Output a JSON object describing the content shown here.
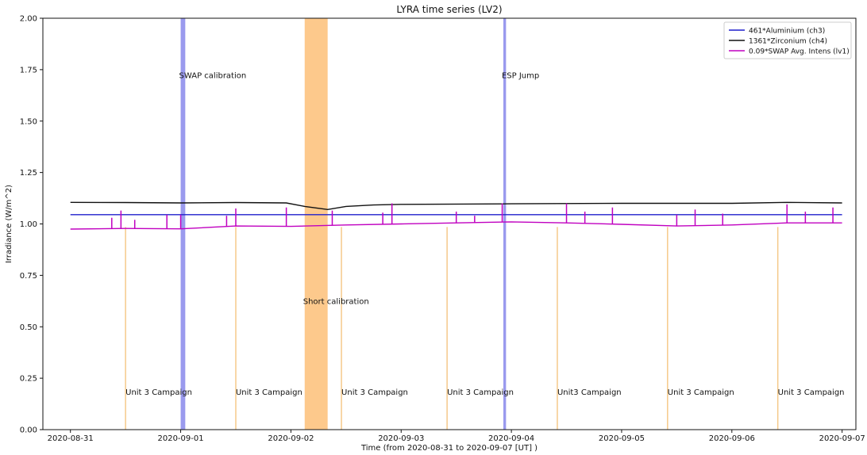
{
  "chart_data": {
    "type": "line",
    "title": "LYRA time series (LV2)",
    "xlabel": "Time (from 2020-08-31 to 2020-09-07 [UT] )",
    "ylabel": "Irradiance (W/m^2)",
    "xlim": [
      "2020-08-30 18:00",
      "2020-09-07 03:00"
    ],
    "ylim": [
      0.0,
      2.0
    ],
    "x_ticks": [
      "2020-08-31",
      "2020-09-01",
      "2020-09-02",
      "2020-09-03",
      "2020-09-04",
      "2020-09-05",
      "2020-09-06",
      "2020-09-07"
    ],
    "y_ticks": [
      "0.00",
      "0.25",
      "0.50",
      "0.75",
      "1.00",
      "1.25",
      "1.50",
      "1.75",
      "2.00"
    ],
    "grid": false,
    "legend_position": "top-right",
    "colors": {
      "aluminium": "#1f1fcc",
      "zirconium": "#111111",
      "swap": "#c000c0",
      "calibration_band": "#9a9aee",
      "short_calibration_band": "#fdc98c",
      "campaign_line": "#f5c98a"
    },
    "series": [
      {
        "name": "461*Aluminium (ch3)",
        "color": "#1f1fcc",
        "points": [
          [
            "2020-08-31 00:00",
            1.045
          ],
          [
            "2020-09-01 00:00",
            1.045
          ],
          [
            "2020-09-02 00:00",
            1.045
          ],
          [
            "2020-09-03 00:00",
            1.045
          ],
          [
            "2020-09-04 00:00",
            1.045
          ],
          [
            "2020-09-05 00:00",
            1.045
          ],
          [
            "2020-09-06 00:00",
            1.045
          ],
          [
            "2020-09-07 00:00",
            1.045
          ]
        ]
      },
      {
        "name": "1361*Zirconium (ch4)",
        "color": "#111111",
        "points": [
          [
            "2020-08-31 00:00",
            1.105
          ],
          [
            "2020-08-31 12:00",
            1.104
          ],
          [
            "2020-09-01 00:00",
            1.102
          ],
          [
            "2020-09-01 12:00",
            1.104
          ],
          [
            "2020-09-01 23:00",
            1.102
          ],
          [
            "2020-09-02 03:00",
            1.085
          ],
          [
            "2020-09-02 08:00",
            1.07
          ],
          [
            "2020-09-02 12:00",
            1.085
          ],
          [
            "2020-09-02 18:00",
            1.092
          ],
          [
            "2020-09-03 00:00",
            1.095
          ],
          [
            "2020-09-04 00:00",
            1.098
          ],
          [
            "2020-09-05 00:00",
            1.1
          ],
          [
            "2020-09-06 00:00",
            1.1
          ],
          [
            "2020-09-06 12:00",
            1.105
          ],
          [
            "2020-09-07 00:00",
            1.102
          ]
        ]
      },
      {
        "name": "0.09*SWAP Avg. Intens (lv1)",
        "color": "#c000c0",
        "points": [
          [
            "2020-08-31 00:00",
            0.975
          ],
          [
            "2020-08-31 12:00",
            0.978
          ],
          [
            "2020-09-01 00:00",
            0.976
          ],
          [
            "2020-09-01 12:00",
            0.99
          ],
          [
            "2020-09-02 00:00",
            0.988
          ],
          [
            "2020-09-02 12:00",
            0.995
          ],
          [
            "2020-09-03 00:00",
            1.0
          ],
          [
            "2020-09-03 12:00",
            1.005
          ],
          [
            "2020-09-04 00:00",
            1.01
          ],
          [
            "2020-09-04 12:00",
            1.005
          ],
          [
            "2020-09-05 00:00",
            0.998
          ],
          [
            "2020-09-05 12:00",
            0.99
          ],
          [
            "2020-09-06 00:00",
            0.995
          ],
          [
            "2020-09-06 12:00",
            1.005
          ],
          [
            "2020-09-07 00:00",
            1.005
          ]
        ],
        "spikes": [
          [
            "2020-08-31 09:00",
            1.03
          ],
          [
            "2020-08-31 11:00",
            1.065
          ],
          [
            "2020-08-31 14:00",
            1.02
          ],
          [
            "2020-08-31 21:00",
            1.045
          ],
          [
            "2020-09-01 00:00",
            1.045
          ],
          [
            "2020-09-01 10:00",
            1.04
          ],
          [
            "2020-09-01 12:00",
            1.075
          ],
          [
            "2020-09-01 23:00",
            1.08
          ],
          [
            "2020-09-02 09:00",
            1.065
          ],
          [
            "2020-09-02 20:00",
            1.055
          ],
          [
            "2020-09-02 22:00",
            1.1
          ],
          [
            "2020-09-03 12:00",
            1.06
          ],
          [
            "2020-09-03 16:00",
            1.04
          ],
          [
            "2020-09-03 22:00",
            1.1
          ],
          [
            "2020-09-04 12:00",
            1.1
          ],
          [
            "2020-09-04 16:00",
            1.06
          ],
          [
            "2020-09-04 22:00",
            1.08
          ],
          [
            "2020-09-05 12:00",
            1.045
          ],
          [
            "2020-09-05 16:00",
            1.07
          ],
          [
            "2020-09-05 22:00",
            1.05
          ],
          [
            "2020-09-06 12:00",
            1.095
          ],
          [
            "2020-09-06 16:00",
            1.06
          ],
          [
            "2020-09-06 22:00",
            1.08
          ]
        ]
      }
    ],
    "bands": [
      {
        "label": "SWAP calibration",
        "start": "2020-09-01 00:00",
        "end": "2020-09-01 01:00",
        "color": "#9a9aee",
        "label_y": 1.71
      },
      {
        "label": "Short calibration",
        "start": "2020-09-02 03:00",
        "end": "2020-09-02 08:00",
        "color": "#fdc98c",
        "label_y": 0.61
      },
      {
        "label": "ESP Jump",
        "start": "2020-09-03 22:15",
        "end": "2020-09-03 22:50",
        "color": "#9a9aee",
        "label_y": 1.71
      }
    ],
    "campaign_lines": [
      {
        "label": "Unit 3 Campaign",
        "x": "2020-08-31 12:00",
        "y_top": 0.985
      },
      {
        "label": "Unit 3 Campaign",
        "x": "2020-09-01 12:00",
        "y_top": 0.985
      },
      {
        "label": "Unit 3 Campaign",
        "x": "2020-09-02 11:00",
        "y_top": 0.985
      },
      {
        "label": "Unit 3 Campaign",
        "x": "2020-09-03 10:00",
        "y_top": 0.985
      },
      {
        "label": "Unit3 Campaign",
        "x": "2020-09-04 10:00",
        "y_top": 0.985
      },
      {
        "label": "Unit 3 Campaign",
        "x": "2020-09-05 10:00",
        "y_top": 0.985
      },
      {
        "label": "Unit 3 Campaign",
        "x": "2020-09-06 10:00",
        "y_top": 0.985
      }
    ],
    "campaign_label_y": 0.17
  }
}
